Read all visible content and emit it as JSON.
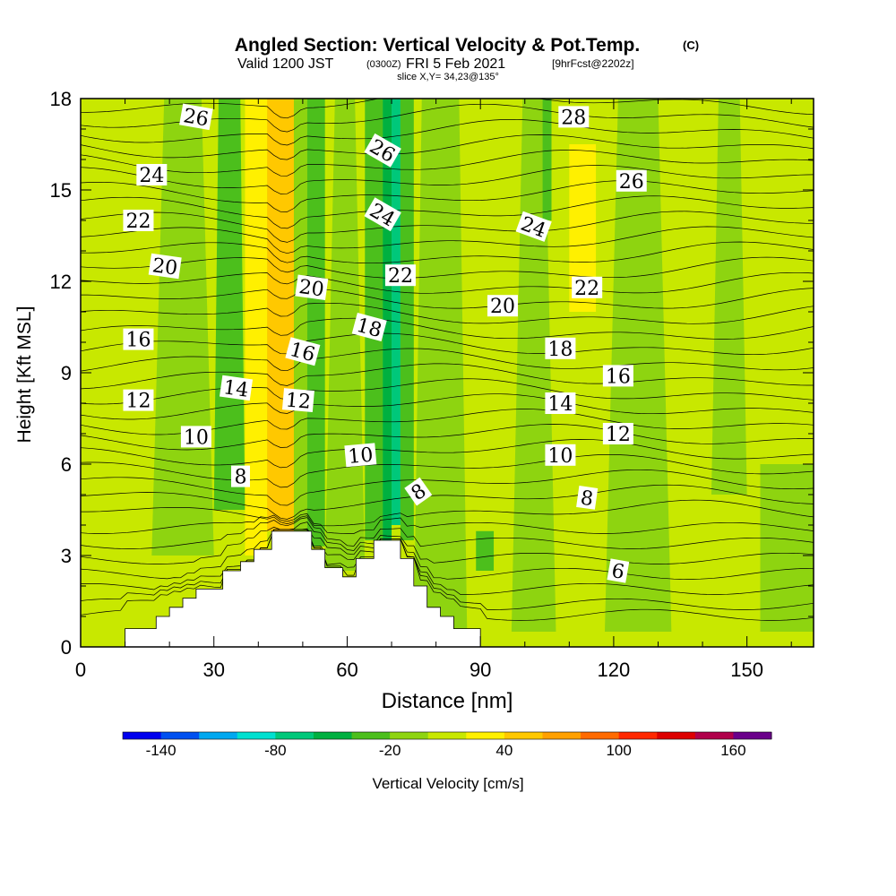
{
  "chart_data": {
    "type": "heatmap",
    "title": "Angled Section: Vertical Velocity & Pot.Temp.",
    "title_units": "(C)",
    "subtitle_valid": "Valid 1200 JST",
    "subtitle_utc": "(0300Z)",
    "subtitle_date": "FRI 5 Feb 2021",
    "subtitle_forecast": "[9hrFcst@2202z]",
    "subtitle_slice": "slice X,Y= 34,23@135°",
    "xlabel": "Distance [nm]",
    "ylabel": "Height [Kft MSL]",
    "xlim": [
      0,
      165
    ],
    "ylim": [
      0,
      18
    ],
    "xticks": [
      0,
      30,
      60,
      90,
      120,
      150
    ],
    "yticks": [
      0,
      3,
      6,
      9,
      12,
      15,
      18
    ],
    "xtick_labels": [
      "0",
      "30",
      "60",
      "90",
      "120",
      "150"
    ],
    "ytick_labels": [
      "0",
      "3",
      "6",
      "9",
      "12",
      "15",
      "18"
    ],
    "colorbar": {
      "label": "Vertical Velocity [cm/s]",
      "tick_values": [
        -140,
        -80,
        -20,
        40,
        100,
        160
      ],
      "tick_labels": [
        "-140",
        "-80",
        "-20",
        "40",
        "100",
        "160"
      ],
      "bins": [
        -160,
        -140,
        -120,
        -100,
        -80,
        -60,
        -40,
        -20,
        0,
        20,
        40,
        60,
        80,
        100,
        120,
        140,
        160,
        180
      ],
      "colors": [
        "#0000ee",
        "#0050f0",
        "#00a8f0",
        "#00e0d0",
        "#00c87a",
        "#00b040",
        "#4cbf1c",
        "#8ed410",
        "#c8e800",
        "#fff000",
        "#ffc800",
        "#ffa000",
        "#ff6a00",
        "#ff2800",
        "#dd0000",
        "#b0004a",
        "#6a008a"
      ]
    },
    "series": [
      {
        "values": [
          {
            "x": 0,
            "x2": 165,
            "y": 0,
            "y2": 18,
            "value": 10
          },
          {
            "x": 16,
            "x2": 30,
            "y": 3,
            "y2": 18,
            "value": -10,
            "taper": 0.6
          },
          {
            "x": 30,
            "x2": 37,
            "y": 4.5,
            "y2": 18,
            "value": -30,
            "taper": 0.7
          },
          {
            "x": 37,
            "x2": 42,
            "y": 3,
            "y2": 18,
            "value": 30
          },
          {
            "x": 42,
            "x2": 48,
            "y": 3.8,
            "y2": 18,
            "value": 50
          },
          {
            "x": 48,
            "x2": 51,
            "y": 3.8,
            "y2": 18,
            "value": -10
          },
          {
            "x": 51,
            "x2": 55,
            "y": 3.3,
            "y2": 18,
            "value": -30
          },
          {
            "x": 55,
            "x2": 64,
            "y": 2.5,
            "y2": 18,
            "value": -10,
            "taper": 0.5
          },
          {
            "x": 64,
            "x2": 68,
            "y": 3.5,
            "y2": 18,
            "value": -30
          },
          {
            "x": 68,
            "x2": 70,
            "y": 3.5,
            "y2": 18,
            "value": -50
          },
          {
            "x": 70,
            "x2": 72,
            "y": 4,
            "y2": 18,
            "value": -70
          },
          {
            "x": 72,
            "x2": 75,
            "y": 3.5,
            "y2": 18,
            "value": -30
          },
          {
            "x": 75,
            "x2": 87,
            "y": 0.5,
            "y2": 18,
            "value": -10,
            "taper": 0.7
          },
          {
            "x": 89,
            "x2": 93,
            "y": 2.5,
            "y2": 3.8,
            "value": -30
          },
          {
            "x": 97,
            "x2": 107,
            "y": 0.5,
            "y2": 18,
            "value": -10,
            "taper": 0.5
          },
          {
            "x": 104,
            "x2": 106,
            "y": 14,
            "y2": 18,
            "value": -30
          },
          {
            "x": 110,
            "x2": 116,
            "y": 11,
            "y2": 16.5,
            "value": 30
          },
          {
            "x": 118,
            "x2": 133,
            "y": 0.5,
            "y2": 18,
            "value": -10,
            "taper": 0.6
          },
          {
            "x": 142,
            "x2": 150,
            "y": 5,
            "y2": 18,
            "value": -10,
            "taper": 0.6
          },
          {
            "x": 153,
            "x2": 165,
            "y": 0.5,
            "y2": 6,
            "value": -10
          }
        ]
      },
      {
        "values": [
          {
            "x": 0,
            "y": 0
          },
          {
            "x": 10,
            "y": 0
          },
          {
            "x": 10,
            "y": 0.6
          },
          {
            "x": 17,
            "y": 0.6
          },
          {
            "x": 17,
            "y": 1
          },
          {
            "x": 20,
            "y": 1
          },
          {
            "x": 20,
            "y": 1.3
          },
          {
            "x": 23,
            "y": 1.3
          },
          {
            "x": 23,
            "y": 1.6
          },
          {
            "x": 26,
            "y": 1.6
          },
          {
            "x": 26,
            "y": 1.9
          },
          {
            "x": 32,
            "y": 1.9
          },
          {
            "x": 32,
            "y": 2.5
          },
          {
            "x": 36,
            "y": 2.5
          },
          {
            "x": 36,
            "y": 2.8
          },
          {
            "x": 39,
            "y": 2.8
          },
          {
            "x": 39,
            "y": 3.2
          },
          {
            "x": 43,
            "y": 3.2
          },
          {
            "x": 43,
            "y": 3.8
          },
          {
            "x": 52,
            "y": 3.8
          },
          {
            "x": 52,
            "y": 3.2
          },
          {
            "x": 55,
            "y": 3.2
          },
          {
            "x": 55,
            "y": 2.6
          },
          {
            "x": 59,
            "y": 2.6
          },
          {
            "x": 59,
            "y": 2.3
          },
          {
            "x": 62,
            "y": 2.3
          },
          {
            "x": 62,
            "y": 2.9
          },
          {
            "x": 66,
            "y": 2.9
          },
          {
            "x": 66,
            "y": 3.5
          },
          {
            "x": 72,
            "y": 3.5
          },
          {
            "x": 72,
            "y": 2.9
          },
          {
            "x": 75,
            "y": 2.9
          },
          {
            "x": 75,
            "y": 2
          },
          {
            "x": 78,
            "y": 2
          },
          {
            "x": 78,
            "y": 1.3
          },
          {
            "x": 81,
            "y": 1.3
          },
          {
            "x": 81,
            "y": 1
          },
          {
            "x": 84,
            "y": 1
          },
          {
            "x": 84,
            "y": 0.6
          },
          {
            "x": 90,
            "y": 0.6
          },
          {
            "x": 90,
            "y": 0
          },
          {
            "x": 165,
            "y": 0
          }
        ]
      }
    ],
    "contour_labels": [
      {
        "text": "26",
        "x": 26,
        "y": 17.4,
        "rot": 10
      },
      {
        "text": "24",
        "x": 16,
        "y": 15.5,
        "rot": 0
      },
      {
        "text": "22",
        "x": 13,
        "y": 14,
        "rot": 0
      },
      {
        "text": "20",
        "x": 19,
        "y": 12.5,
        "rot": 8
      },
      {
        "text": "16",
        "x": 13,
        "y": 10.1,
        "rot": 0
      },
      {
        "text": "12",
        "x": 13,
        "y": 8.1,
        "rot": 0
      },
      {
        "text": "14",
        "x": 35,
        "y": 8.5,
        "rot": 8
      },
      {
        "text": "10",
        "x": 26,
        "y": 6.9,
        "rot": 0
      },
      {
        "text": "8",
        "x": 36,
        "y": 5.6,
        "rot": 0
      },
      {
        "text": "20",
        "x": 52,
        "y": 11.8,
        "rot": 8
      },
      {
        "text": "16",
        "x": 50,
        "y": 9.7,
        "rot": 15
      },
      {
        "text": "12",
        "x": 49,
        "y": 8.1,
        "rot": 5
      },
      {
        "text": "26",
        "x": 68,
        "y": 16.3,
        "rot": 30
      },
      {
        "text": "24",
        "x": 68,
        "y": 14.2,
        "rot": 30
      },
      {
        "text": "22",
        "x": 72,
        "y": 12.2,
        "rot": 0
      },
      {
        "text": "18",
        "x": 65,
        "y": 10.5,
        "rot": 15
      },
      {
        "text": "10",
        "x": 63,
        "y": 6.3,
        "rot": -5
      },
      {
        "text": "8",
        "x": 76,
        "y": 5.1,
        "rot": -35
      },
      {
        "text": "28",
        "x": 111,
        "y": 17.4,
        "rot": 0
      },
      {
        "text": "26",
        "x": 124,
        "y": 15.3,
        "rot": 0
      },
      {
        "text": "24",
        "x": 102,
        "y": 13.8,
        "rot": 20
      },
      {
        "text": "22",
        "x": 114,
        "y": 11.8,
        "rot": 0
      },
      {
        "text": "20",
        "x": 95,
        "y": 11.2,
        "rot": 0
      },
      {
        "text": "18",
        "x": 108,
        "y": 9.8,
        "rot": 0
      },
      {
        "text": "16",
        "x": 121,
        "y": 8.9,
        "rot": 0
      },
      {
        "text": "14",
        "x": 108,
        "y": 8.0,
        "rot": 0
      },
      {
        "text": "12",
        "x": 121,
        "y": 7.0,
        "rot": 0
      },
      {
        "text": "10",
        "x": 108,
        "y": 6.3,
        "rot": 0
      },
      {
        "text": "8",
        "x": 114,
        "y": 4.9,
        "rot": 8
      },
      {
        "text": "6",
        "x": 121,
        "y": 2.5,
        "rot": 10
      }
    ],
    "contour_line_color": "#000000"
  }
}
